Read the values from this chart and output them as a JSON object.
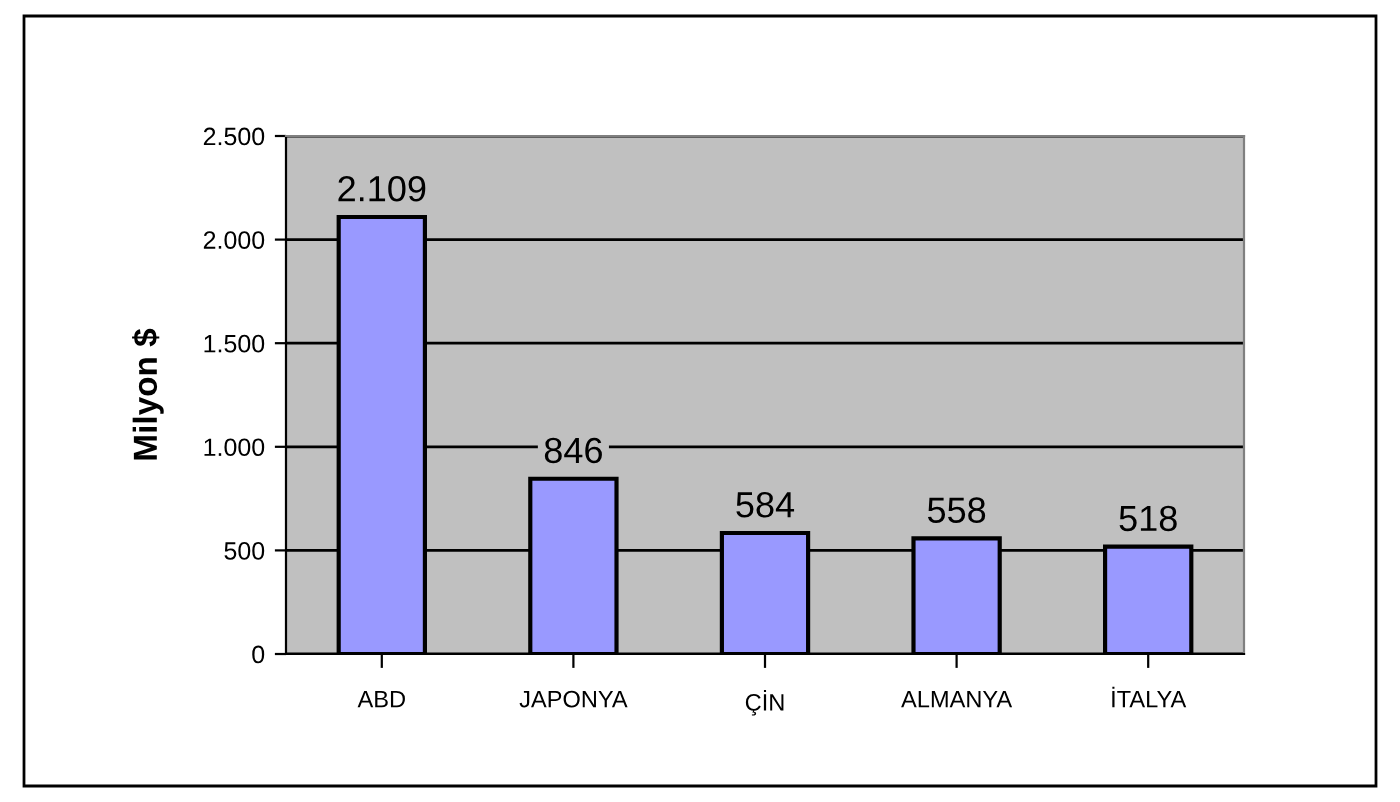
{
  "chart_data": {
    "type": "bar",
    "categories": [
      "ABD",
      "JAPONYA",
      "ÇİN",
      "ALMANYA",
      "İTALYA"
    ],
    "values": [
      2109,
      846,
      584,
      558,
      518
    ],
    "color": "#9999ff",
    "value_labels": [
      "2.109",
      "846",
      "584",
      "558",
      "518"
    ],
    "ylabel": "Milyon $",
    "ylim": [
      0,
      2500
    ],
    "yticks": [
      0,
      500,
      {
        "value": 1000,
        "label": "1.000"
      },
      {
        "value": 1500,
        "label": "1.500"
      },
      {
        "value": 2000,
        "label": "2.000"
      },
      {
        "value": 2500,
        "label": "2.500"
      }
    ],
    "grid": "y",
    "legend": false
  }
}
